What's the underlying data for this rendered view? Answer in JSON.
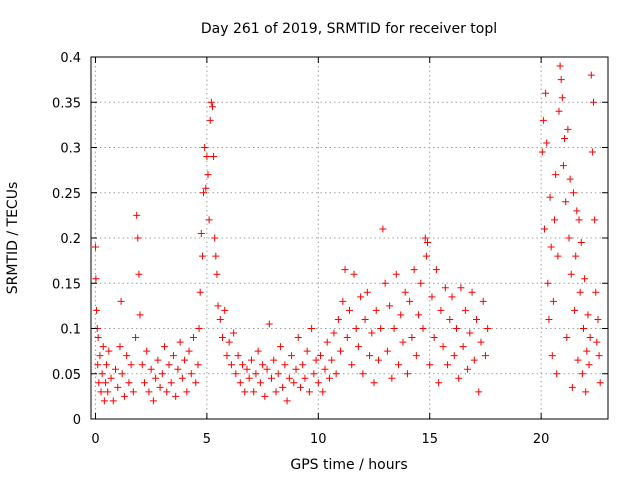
{
  "chart_data": {
    "type": "scatter",
    "title": "Day 261 of 2019, SRMTID for receiver topl",
    "xlabel": "GPS time / hours",
    "ylabel": "SRMTID / TECUs",
    "xlim": [
      -0.2,
      23.0
    ],
    "ylim": [
      0,
      0.4
    ],
    "xticks": [
      0,
      5,
      10,
      15,
      20
    ],
    "yticks": [
      0,
      0.05,
      0.1,
      0.15,
      0.2,
      0.25,
      0.3,
      0.35,
      0.4
    ],
    "ytick_labels": [
      "0",
      "0.05",
      "0.1",
      "0.15",
      "0.2",
      "0.25",
      "0.3",
      "0.35",
      "0.4"
    ],
    "grid": true,
    "marker": "+",
    "color": "#ff0000",
    "series": [
      {
        "name": "SRMTID",
        "points": [
          [
            0.0,
            0.19
          ],
          [
            0.02,
            0.155
          ],
          [
            0.05,
            0.12
          ],
          [
            0.08,
            0.1
          ],
          [
            0.1,
            0.06
          ],
          [
            0.12,
            0.09
          ],
          [
            0.15,
            0.04
          ],
          [
            0.2,
            0.07
          ],
          [
            0.25,
            0.03
          ],
          [
            0.3,
            0.05
          ],
          [
            0.35,
            0.08
          ],
          [
            0.4,
            0.02
          ],
          [
            0.45,
            0.04
          ],
          [
            0.5,
            0.06
          ],
          [
            0.55,
            0.03
          ],
          [
            0.6,
            0.075
          ],
          [
            0.7,
            0.045
          ],
          [
            0.8,
            0.02
          ],
          [
            0.9,
            0.055
          ],
          [
            1.0,
            0.035
          ],
          [
            1.1,
            0.08
          ],
          [
            1.15,
            0.13
          ],
          [
            1.2,
            0.05
          ],
          [
            1.3,
            0.025
          ],
          [
            1.4,
            0.07
          ],
          [
            1.5,
            0.04
          ],
          [
            1.6,
            0.06
          ],
          [
            1.7,
            0.03
          ],
          [
            1.8,
            0.09
          ],
          [
            1.85,
            0.225
          ],
          [
            1.9,
            0.2
          ],
          [
            1.95,
            0.16
          ],
          [
            2.0,
            0.115
          ],
          [
            2.1,
            0.06
          ],
          [
            2.2,
            0.04
          ],
          [
            2.3,
            0.075
          ],
          [
            2.4,
            0.03
          ],
          [
            2.5,
            0.055
          ],
          [
            2.6,
            0.02
          ],
          [
            2.7,
            0.045
          ],
          [
            2.8,
            0.065
          ],
          [
            2.9,
            0.035
          ],
          [
            3.0,
            0.05
          ],
          [
            3.1,
            0.08
          ],
          [
            3.2,
            0.03
          ],
          [
            3.3,
            0.06
          ],
          [
            3.4,
            0.04
          ],
          [
            3.5,
            0.07
          ],
          [
            3.6,
            0.025
          ],
          [
            3.7,
            0.055
          ],
          [
            3.8,
            0.085
          ],
          [
            3.9,
            0.045
          ],
          [
            4.0,
            0.065
          ],
          [
            4.1,
            0.03
          ],
          [
            4.2,
            0.075
          ],
          [
            4.3,
            0.05
          ],
          [
            4.4,
            0.09
          ],
          [
            4.5,
            0.04
          ],
          [
            4.6,
            0.06
          ],
          [
            4.65,
            0.1
          ],
          [
            4.7,
            0.14
          ],
          [
            4.75,
            0.205
          ],
          [
            4.8,
            0.18
          ],
          [
            4.85,
            0.25
          ],
          [
            4.9,
            0.3
          ],
          [
            4.95,
            0.255
          ],
          [
            5.0,
            0.29
          ],
          [
            5.05,
            0.27
          ],
          [
            5.1,
            0.22
          ],
          [
            5.15,
            0.33
          ],
          [
            5.2,
            0.35
          ],
          [
            5.25,
            0.345
          ],
          [
            5.3,
            0.29
          ],
          [
            5.35,
            0.2
          ],
          [
            5.4,
            0.18
          ],
          [
            5.45,
            0.16
          ],
          [
            5.5,
            0.125
          ],
          [
            5.6,
            0.11
          ],
          [
            5.7,
            0.09
          ],
          [
            5.8,
            0.12
          ],
          [
            5.9,
            0.07
          ],
          [
            6.0,
            0.085
          ],
          [
            6.1,
            0.06
          ],
          [
            6.2,
            0.095
          ],
          [
            6.3,
            0.05
          ],
          [
            6.4,
            0.07
          ],
          [
            6.5,
            0.04
          ],
          [
            6.6,
            0.06
          ],
          [
            6.7,
            0.03
          ],
          [
            6.8,
            0.055
          ],
          [
            6.9,
            0.045
          ],
          [
            7.0,
            0.065
          ],
          [
            7.1,
            0.03
          ],
          [
            7.2,
            0.05
          ],
          [
            7.3,
            0.075
          ],
          [
            7.4,
            0.04
          ],
          [
            7.5,
            0.06
          ],
          [
            7.6,
            0.025
          ],
          [
            7.7,
            0.055
          ],
          [
            7.8,
            0.105
          ],
          [
            7.9,
            0.045
          ],
          [
            8.0,
            0.065
          ],
          [
            8.1,
            0.03
          ],
          [
            8.2,
            0.05
          ],
          [
            8.3,
            0.08
          ],
          [
            8.4,
            0.035
          ],
          [
            8.5,
            0.06
          ],
          [
            8.6,
            0.02
          ],
          [
            8.7,
            0.045
          ],
          [
            8.8,
            0.07
          ],
          [
            8.9,
            0.04
          ],
          [
            9.0,
            0.055
          ],
          [
            9.1,
            0.09
          ],
          [
            9.2,
            0.035
          ],
          [
            9.3,
            0.06
          ],
          [
            9.4,
            0.045
          ],
          [
            9.5,
            0.075
          ],
          [
            9.6,
            0.03
          ],
          [
            9.7,
            0.1
          ],
          [
            9.8,
            0.05
          ],
          [
            9.9,
            0.065
          ],
          [
            10.0,
            0.04
          ],
          [
            10.1,
            0.07
          ],
          [
            10.2,
            0.03
          ],
          [
            10.3,
            0.055
          ],
          [
            10.4,
            0.085
          ],
          [
            10.5,
            0.045
          ],
          [
            10.6,
            0.065
          ],
          [
            10.7,
            0.095
          ],
          [
            10.8,
            0.05
          ],
          [
            10.9,
            0.11
          ],
          [
            11.0,
            0.075
          ],
          [
            11.1,
            0.13
          ],
          [
            11.2,
            0.165
          ],
          [
            11.3,
            0.09
          ],
          [
            11.4,
            0.12
          ],
          [
            11.5,
            0.06
          ],
          [
            11.6,
            0.16
          ],
          [
            11.7,
            0.1
          ],
          [
            11.8,
            0.08
          ],
          [
            11.9,
            0.135
          ],
          [
            12.0,
            0.05
          ],
          [
            12.1,
            0.11
          ],
          [
            12.2,
            0.14
          ],
          [
            12.3,
            0.07
          ],
          [
            12.4,
            0.095
          ],
          [
            12.5,
            0.04
          ],
          [
            12.6,
            0.12
          ],
          [
            12.7,
            0.065
          ],
          [
            12.8,
            0.1
          ],
          [
            12.9,
            0.21
          ],
          [
            13.0,
            0.15
          ],
          [
            13.1,
            0.075
          ],
          [
            13.2,
            0.125
          ],
          [
            13.3,
            0.045
          ],
          [
            13.4,
            0.1
          ],
          [
            13.5,
            0.16
          ],
          [
            13.6,
            0.06
          ],
          [
            13.7,
            0.115
          ],
          [
            13.8,
            0.085
          ],
          [
            13.9,
            0.14
          ],
          [
            14.0,
            0.05
          ],
          [
            14.1,
            0.13
          ],
          [
            14.2,
            0.09
          ],
          [
            14.3,
            0.165
          ],
          [
            14.4,
            0.07
          ],
          [
            14.5,
            0.115
          ],
          [
            14.6,
            0.15
          ],
          [
            14.7,
            0.1
          ],
          [
            14.8,
            0.2
          ],
          [
            14.85,
            0.18
          ],
          [
            14.9,
            0.195
          ],
          [
            15.0,
            0.06
          ],
          [
            15.1,
            0.135
          ],
          [
            15.2,
            0.09
          ],
          [
            15.3,
            0.165
          ],
          [
            15.4,
            0.04
          ],
          [
            15.5,
            0.12
          ],
          [
            15.6,
            0.08
          ],
          [
            15.7,
            0.145
          ],
          [
            15.8,
            0.06
          ],
          [
            15.9,
            0.11
          ],
          [
            16.0,
            0.135
          ],
          [
            16.1,
            0.07
          ],
          [
            16.2,
            0.1
          ],
          [
            16.3,
            0.045
          ],
          [
            16.4,
            0.145
          ],
          [
            16.5,
            0.08
          ],
          [
            16.6,
            0.12
          ],
          [
            16.7,
            0.055
          ],
          [
            16.8,
            0.095
          ],
          [
            16.9,
            0.14
          ],
          [
            17.0,
            0.065
          ],
          [
            17.1,
            0.11
          ],
          [
            17.2,
            0.03
          ],
          [
            17.3,
            0.085
          ],
          [
            17.4,
            0.13
          ],
          [
            17.5,
            0.07
          ],
          [
            17.6,
            0.1
          ],
          [
            20.05,
            0.295
          ],
          [
            20.1,
            0.33
          ],
          [
            20.15,
            0.21
          ],
          [
            20.2,
            0.36
          ],
          [
            20.25,
            0.305
          ],
          [
            20.3,
            0.15
          ],
          [
            20.35,
            0.11
          ],
          [
            20.4,
            0.245
          ],
          [
            20.45,
            0.19
          ],
          [
            20.5,
            0.07
          ],
          [
            20.55,
            0.13
          ],
          [
            20.6,
            0.22
          ],
          [
            20.65,
            0.27
          ],
          [
            20.7,
            0.05
          ],
          [
            20.75,
            0.18
          ],
          [
            20.8,
            0.34
          ],
          [
            20.85,
            0.39
          ],
          [
            20.9,
            0.375
          ],
          [
            20.95,
            0.355
          ],
          [
            21.0,
            0.28
          ],
          [
            21.05,
            0.31
          ],
          [
            21.1,
            0.24
          ],
          [
            21.15,
            0.09
          ],
          [
            21.2,
            0.32
          ],
          [
            21.25,
            0.2
          ],
          [
            21.3,
            0.265
          ],
          [
            21.35,
            0.16
          ],
          [
            21.4,
            0.035
          ],
          [
            21.45,
            0.25
          ],
          [
            21.5,
            0.12
          ],
          [
            21.55,
            0.18
          ],
          [
            21.6,
            0.23
          ],
          [
            21.65,
            0.065
          ],
          [
            21.7,
            0.22
          ],
          [
            21.75,
            0.14
          ],
          [
            21.8,
            0.195
          ],
          [
            21.85,
            0.05
          ],
          [
            21.9,
            0.1
          ],
          [
            21.95,
            0.155
          ],
          [
            22.0,
            0.03
          ],
          [
            22.05,
            0.075
          ],
          [
            22.1,
            0.115
          ],
          [
            22.15,
            0.06
          ],
          [
            22.2,
            0.09
          ],
          [
            22.25,
            0.38
          ],
          [
            22.3,
            0.295
          ],
          [
            22.35,
            0.35
          ],
          [
            22.4,
            0.22
          ],
          [
            22.45,
            0.14
          ],
          [
            22.5,
            0.085
          ],
          [
            22.55,
            0.11
          ],
          [
            22.6,
            0.07
          ],
          [
            22.65,
            0.04
          ]
        ]
      }
    ]
  }
}
